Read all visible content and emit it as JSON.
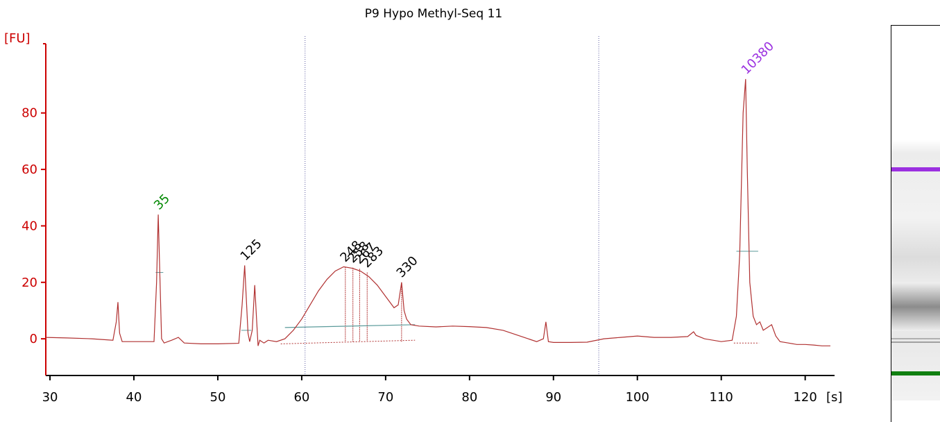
{
  "chart_data": {
    "type": "line",
    "title": "P9 Hypo Methyl-Seq 11",
    "xlabel": "[s]",
    "ylabel": "[FU]",
    "xlim": [
      29.5,
      123.5
    ],
    "ylim": [
      -13,
      106
    ],
    "xticks": [
      30,
      40,
      50,
      60,
      70,
      80,
      90,
      100,
      110,
      120
    ],
    "yticks": [
      0,
      20,
      40,
      60,
      80
    ],
    "grid": false,
    "colors": {
      "axis": "#cc0000",
      "trace": "#b03030",
      "tick_text": "#000000",
      "marker_lower": "#008800",
      "marker_upper": "#9b30e0",
      "peak_label": "#000000",
      "baseline": "#5a9a9a",
      "region_line": "#5a5aa0"
    },
    "region_lines_x": [
      60.4,
      95.4
    ],
    "series": [
      {
        "x": [
          29.5,
          32,
          35,
          37.5,
          37.9,
          38.1,
          38.3,
          38.6,
          40,
          42.4,
          42.7,
          42.9,
          43.1,
          43.3,
          43.6,
          44.5,
          45.3,
          46,
          48,
          50,
          52.5,
          52.9,
          53.2,
          53.4,
          53.6,
          53.8,
          54.1,
          54.4,
          54.6,
          54.8,
          55,
          55.5,
          56,
          57,
          58,
          59,
          60,
          61,
          62,
          63,
          64,
          65,
          66,
          67,
          68,
          69,
          70,
          71,
          71.5,
          71.9,
          72.2,
          72.5,
          73,
          74,
          76,
          78,
          80,
          82,
          84,
          86,
          88,
          88.8,
          89.1,
          89.4,
          90,
          92,
          94,
          96,
          98,
          100,
          102,
          104,
          106,
          106.7,
          107,
          108,
          110,
          111.3,
          111.8,
          112.2,
          112.6,
          112.9,
          113.1,
          113.4,
          113.8,
          114.2,
          114.6,
          115,
          115.5,
          116,
          116.5,
          117,
          118,
          119,
          120,
          121,
          122,
          123
        ],
        "y": [
          0.5,
          0.3,
          0,
          -0.5,
          6,
          13,
          2,
          -1,
          -1,
          -1,
          20,
          44,
          22,
          0,
          -1.5,
          -0.5,
          0.5,
          -1.5,
          -1.8,
          -1.8,
          -1.6,
          12,
          26,
          14,
          2,
          -1,
          3,
          19,
          8,
          -2.5,
          -0.5,
          -1.5,
          -0.5,
          -1,
          0,
          3,
          7,
          12,
          17,
          21,
          24,
          25.5,
          25,
          24,
          22,
          19,
          15,
          11,
          12,
          20,
          10,
          7,
          5,
          4.5,
          4.2,
          4.5,
          4.3,
          4,
          3,
          1,
          -1,
          0,
          6,
          -1,
          -1.3,
          -1.3,
          -1.2,
          0,
          0.5,
          1,
          0.5,
          0.5,
          0.8,
          2.5,
          1.2,
          0,
          -1,
          -0.5,
          8,
          30,
          80,
          92,
          60,
          20,
          8,
          5,
          6,
          3,
          4,
          5,
          1,
          -1,
          -1.5,
          -2,
          -2,
          -2.2,
          -2.5,
          -2.5
        ]
      }
    ],
    "markers": [
      {
        "label": "35",
        "x": 43.0,
        "y": 44,
        "role": "lower"
      },
      {
        "label": "10380",
        "x": 113.0,
        "y": 92,
        "role": "upper"
      }
    ],
    "peaks": [
      {
        "label": "125",
        "x": 53.3,
        "y": 26
      },
      {
        "label": "248",
        "x": 65.2,
        "y": 25.5
      },
      {
        "label": "258",
        "x": 66.1,
        "y": 25.2
      },
      {
        "label": "267",
        "x": 66.9,
        "y": 24.8
      },
      {
        "label": "283",
        "x": 67.8,
        "y": 23.5
      },
      {
        "label": "330",
        "x": 71.9,
        "y": 20
      }
    ]
  }
}
